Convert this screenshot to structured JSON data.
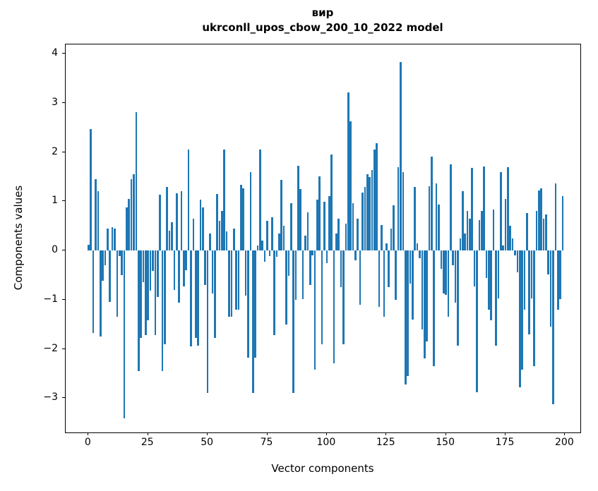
{
  "figure": {
    "title_line1": "вир",
    "title_line2": "ukrconll_upos_cbow_200_10_2022 model",
    "xlabel": "Vector components",
    "ylabel": "Components values"
  },
  "chart_data": {
    "type": "bar",
    "title": "вир",
    "subtitle": "ukrconll_upos_cbow_200_10_2022 model",
    "xlabel": "Vector components",
    "ylabel": "Components values",
    "bar_color": "#1f77b4",
    "grid": false,
    "legend_position": "none",
    "x_start": 0,
    "xlim": [
      -9.6,
      206.4
    ],
    "ylim": [
      -3.7,
      4.19
    ],
    "x_ticks": [
      {
        "value": 0,
        "label": "0"
      },
      {
        "value": 25,
        "label": "25"
      },
      {
        "value": 50,
        "label": "50"
      },
      {
        "value": 75,
        "label": "75"
      },
      {
        "value": 100,
        "label": "100"
      },
      {
        "value": 125,
        "label": "125"
      },
      {
        "value": 150,
        "label": "150"
      },
      {
        "value": 175,
        "label": "175"
      },
      {
        "value": 200,
        "label": "200"
      }
    ],
    "y_ticks": [
      {
        "value": 4,
        "label": "4"
      },
      {
        "value": 3,
        "label": "3"
      },
      {
        "value": 2,
        "label": "2"
      },
      {
        "value": 1,
        "label": "1"
      },
      {
        "value": 0,
        "label": "0"
      },
      {
        "value": -1,
        "label": "−1"
      },
      {
        "value": -2,
        "label": "−2"
      },
      {
        "value": -3,
        "label": "−3"
      }
    ],
    "values": [
      0.12,
      2.47,
      -1.68,
      1.45,
      1.2,
      -1.75,
      -0.62,
      -0.3,
      0.45,
      -1.05,
      0.48,
      0.45,
      -1.35,
      -0.12,
      -0.5,
      -3.42,
      0.88,
      1.05,
      1.45,
      1.55,
      2.81,
      -2.45,
      -1.78,
      -0.65,
      -1.72,
      -1.42,
      -0.82,
      -0.42,
      -1.72,
      -0.95,
      1.13,
      -2.45,
      -1.9,
      1.29,
      0.41,
      0.57,
      -0.8,
      1.16,
      -1.06,
      1.21,
      -0.73,
      -0.4,
      2.05,
      -1.95,
      0.65,
      -1.78,
      -1.94,
      1.03,
      0.88,
      -0.7,
      -2.9,
      0.35,
      -0.87,
      -1.78,
      1.15,
      0.6,
      0.8,
      2.05,
      0.39,
      -1.35,
      -1.35,
      0.44,
      -1.2,
      -1.2,
      1.34,
      1.26,
      -0.92,
      -2.18,
      1.6,
      -2.9,
      -2.18,
      0.1,
      2.05,
      0.2,
      -0.23,
      0.6,
      -0.12,
      0.68,
      -1.72,
      -0.13,
      0.35,
      1.43,
      0.5,
      -1.5,
      -0.51,
      0.96,
      -2.9,
      -1.0,
      1.72,
      1.25,
      -0.99,
      0.3,
      0.77,
      -0.7,
      -0.1,
      -2.42,
      1.03,
      1.51,
      -1.9,
      0.99,
      -0.25,
      1.11,
      1.95,
      -2.3,
      0.35,
      0.65,
      -0.75,
      -1.9,
      0.55,
      3.22,
      2.62,
      0.96,
      -0.2,
      0.65,
      -1.1,
      1.18,
      1.29,
      1.55,
      1.5,
      1.63,
      2.05,
      2.18,
      -1.15,
      0.52,
      -1.35,
      0.15,
      -0.75,
      0.44,
      0.92,
      -1.01,
      1.69,
      3.83,
      1.6,
      -2.72,
      -2.55,
      -0.68,
      -1.4,
      1.29,
      0.15,
      -0.15,
      -1.6,
      -2.2,
      -1.85,
      1.3,
      1.91,
      -2.35,
      1.37,
      0.94,
      -0.37,
      -0.87,
      -0.9,
      -1.35,
      1.75,
      -0.3,
      -1.06,
      -1.94,
      0.25,
      1.2,
      0.35,
      0.81,
      0.65,
      1.68,
      -0.73,
      -2.88,
      0.62,
      0.81,
      1.71,
      -0.56,
      -1.2,
      -1.42,
      0.84,
      -1.94,
      -0.97,
      1.6,
      0.1,
      1.05,
      1.7,
      0.51,
      0.24,
      -0.1,
      -0.44,
      -2.78,
      -2.42,
      -1.2,
      0.76,
      -1.7,
      -0.97,
      -2.35,
      0.8,
      1.22,
      1.26,
      0.64,
      0.73,
      -0.49,
      -1.55,
      -3.12,
      1.37,
      -1.2,
      -0.99,
      1.1
    ]
  }
}
